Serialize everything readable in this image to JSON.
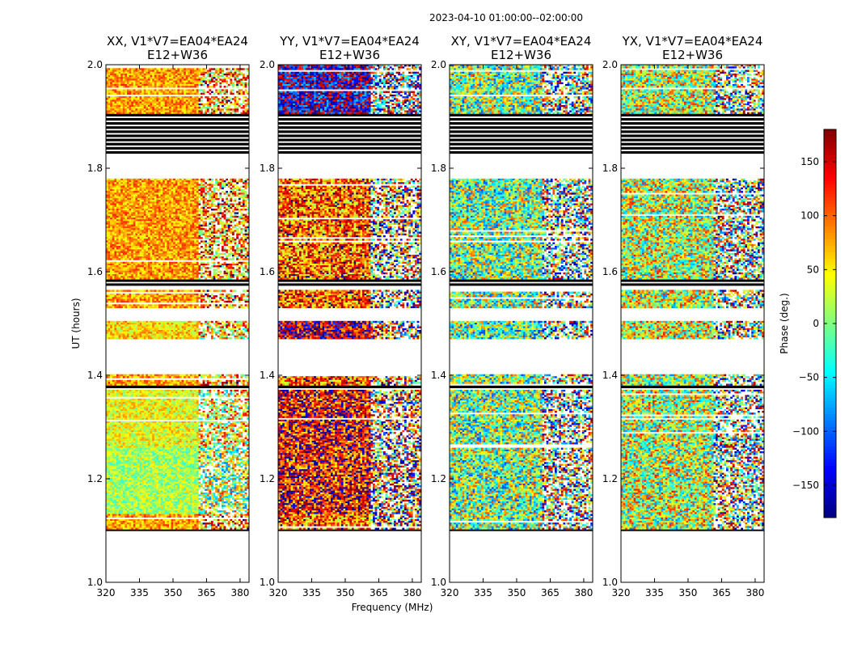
{
  "suptitle": "2023-04-10  01:00:00--02:00:00",
  "chart_data": {
    "type": "heatmap",
    "xlabel": "Frequency (MHz)",
    "ylabel": "UT (hours)",
    "xlim": [
      320,
      384
    ],
    "ylim": [
      1.0,
      2.0
    ],
    "xticks": [
      320,
      335,
      350,
      365,
      380
    ],
    "yticks": [
      1.0,
      1.2,
      1.4,
      1.6,
      1.8,
      2.0
    ],
    "freq_break_mhz": 361,
    "panels": [
      {
        "title_line1": "XX, V1*V7=EA04*EA24",
        "title_line2": "E12+W36",
        "base_phase": 80,
        "low_spread": 45,
        "high_spread": 110,
        "segment_phase": {
          "1.49": 55,
          "1.22": 15,
          "1.33": 40
        }
      },
      {
        "title_line1": "YY, V1*V7=EA04*EA24",
        "title_line2": "E12+W36",
        "base_phase": 100,
        "low_spread": 90,
        "high_spread": 160,
        "segment_phase": {
          "1.97": -150,
          "1.49": 160,
          "1.22": 130,
          "1.33": 135
        }
      },
      {
        "title_line1": "XY, V1*V7=EA04*EA24",
        "title_line2": "E12+W36",
        "base_phase": 0,
        "low_spread": 110,
        "high_spread": 170,
        "segment_phase": {
          "1.49": -10
        }
      },
      {
        "title_line1": "YX, V1*V7=EA04*EA24",
        "title_line2": "E12+W36",
        "base_phase": 20,
        "low_spread": 110,
        "high_spread": 170,
        "segment_phase": {
          "1.49": 30
        }
      }
    ],
    "time_segments": [
      {
        "t0": 1.905,
        "t1": 2.0,
        "kind": "data",
        "phase_key": "1.97"
      },
      {
        "t0": 1.825,
        "t1": 1.905,
        "kind": "flagged-striped"
      },
      {
        "t0": 1.78,
        "t1": 1.825,
        "kind": "empty"
      },
      {
        "t0": 1.585,
        "t1": 1.78,
        "kind": "data",
        "phase_key": "1.68"
      },
      {
        "t0": 1.57,
        "t1": 1.585,
        "kind": "flagged-striped"
      },
      {
        "t0": 1.53,
        "t1": 1.565,
        "kind": "data",
        "phase_key": "1.55"
      },
      {
        "t0": 1.47,
        "t1": 1.505,
        "kind": "data",
        "phase_key": "1.49"
      },
      {
        "t0": 1.38,
        "t1": 1.402,
        "kind": "data",
        "phase_key": "1.39"
      },
      {
        "t0": 1.372,
        "t1": 1.38,
        "kind": "flagged-striped"
      },
      {
        "t0": 1.26,
        "t1": 1.372,
        "kind": "data",
        "phase_key": "1.33"
      },
      {
        "t0": 1.132,
        "t1": 1.26,
        "kind": "data",
        "phase_key": "1.22"
      },
      {
        "t0": 1.102,
        "t1": 1.132,
        "kind": "data",
        "phase_key": "1.12"
      },
      {
        "t0": 1.097,
        "t1": 1.102,
        "kind": "flagged-striped"
      }
    ],
    "colorbar": {
      "label": "Phase (deg.)",
      "range": [
        -180,
        180
      ],
      "ticks": [
        150,
        100,
        50,
        0,
        -50,
        -100,
        -150
      ],
      "colormap": "jet"
    }
  }
}
